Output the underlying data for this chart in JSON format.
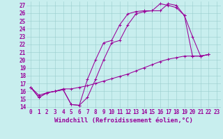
{
  "xlabel": "Windchill (Refroidissement éolien,°C)",
  "background_color": "#c8eeee",
  "line_color": "#990099",
  "grid_color": "#99cccc",
  "xlim": [
    -0.5,
    23.5
  ],
  "ylim": [
    13.8,
    27.5
  ],
  "xticks": [
    0,
    1,
    2,
    3,
    4,
    5,
    6,
    7,
    8,
    9,
    10,
    11,
    12,
    13,
    14,
    15,
    16,
    17,
    18,
    19,
    20,
    21,
    22,
    23
  ],
  "yticks": [
    14,
    15,
    16,
    17,
    18,
    19,
    20,
    21,
    22,
    23,
    24,
    25,
    26,
    27
  ],
  "line1_x": [
    0,
    1,
    2,
    3,
    4,
    5,
    6,
    7,
    8,
    9,
    10,
    11,
    12,
    13,
    14,
    15,
    16,
    17,
    18,
    19,
    20,
    21,
    22
  ],
  "line1_y": [
    16.5,
    15.2,
    15.8,
    16.0,
    16.2,
    14.3,
    14.2,
    17.5,
    20.0,
    22.2,
    22.5,
    24.5,
    25.9,
    26.2,
    26.3,
    26.3,
    27.2,
    27.0,
    26.7,
    25.7,
    23.0,
    20.5,
    20.7
  ],
  "line2_x": [
    0,
    1,
    2,
    3,
    4,
    5,
    6,
    7,
    8,
    9,
    10,
    11,
    12,
    13,
    14,
    15,
    16,
    17,
    18,
    19,
    20,
    21,
    22
  ],
  "line2_y": [
    16.5,
    15.2,
    15.8,
    16.0,
    16.2,
    14.3,
    14.2,
    15.2,
    17.5,
    20.0,
    22.2,
    22.5,
    24.5,
    25.9,
    26.2,
    26.3,
    26.3,
    27.2,
    27.0,
    25.7,
    20.5,
    20.5,
    20.7
  ],
  "line3_x": [
    0,
    1,
    2,
    3,
    4,
    5,
    6,
    7,
    8,
    9,
    10,
    11,
    12,
    13,
    14,
    15,
    16,
    17,
    18,
    19,
    20,
    21,
    22
  ],
  "line3_y": [
    16.5,
    15.5,
    15.8,
    16.0,
    16.3,
    16.3,
    16.5,
    16.7,
    17.0,
    17.3,
    17.6,
    17.9,
    18.2,
    18.6,
    19.0,
    19.4,
    19.8,
    20.1,
    20.3,
    20.5,
    20.5,
    20.5,
    20.7
  ],
  "fontsize_xlabel": 6.5,
  "fontsize_ticks": 5.5
}
